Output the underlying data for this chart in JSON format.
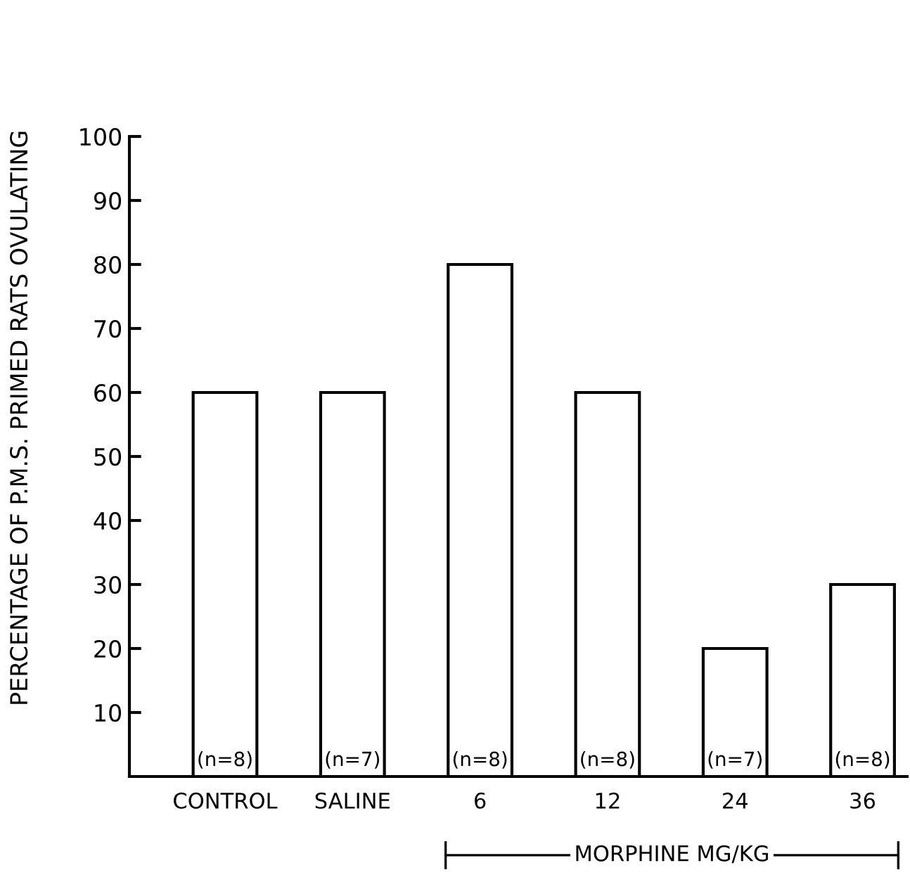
{
  "chart_data": {
    "type": "bar",
    "ylabel": "PERCENTAGE OF P.M.S. PRIMED RATS OVULATING",
    "categories": [
      "CONTROL",
      "SALINE",
      "6",
      "12",
      "24",
      "36"
    ],
    "values": [
      60,
      60,
      80,
      60,
      20,
      30
    ],
    "color": "#ffffff",
    "ylim": [
      0,
      100
    ],
    "yticks": [
      10,
      20,
      30,
      40,
      50,
      60,
      70,
      80,
      90,
      100
    ],
    "grid": false,
    "annotations": [
      {
        "text": "(n=8)",
        "x": "CONTROL",
        "y": 0
      },
      {
        "text": "(n=7)",
        "x": "SALINE",
        "y": 0
      },
      {
        "text": "(n=8)",
        "x": "6",
        "y": 0
      },
      {
        "text": "(n=8)",
        "x": "12",
        "y": 0
      },
      {
        "text": "(n=7)",
        "x": "24",
        "y": 0
      },
      {
        "text": "(n=8)",
        "x": "36",
        "y": 0
      },
      "MORPHINE MG/KG"
    ]
  }
}
